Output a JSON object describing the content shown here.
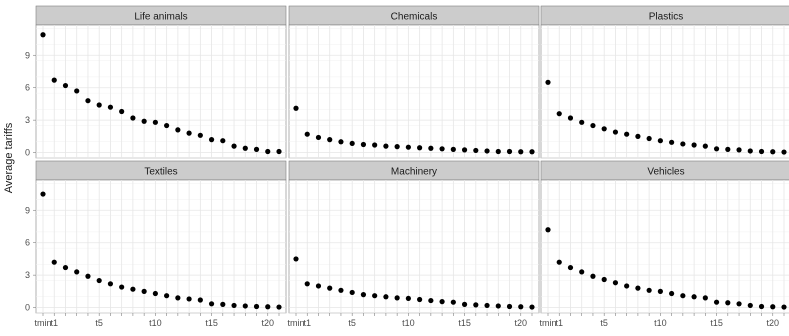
{
  "chart_data": {
    "type": "scatter",
    "ylabel": "Average tariffs",
    "xlabel": "",
    "ylim": [
      -0.5,
      11.8
    ],
    "y_ticks": [
      0,
      3,
      6,
      9
    ],
    "x": [
      "tmin",
      "t1",
      "t2",
      "t3",
      "t4",
      "t5",
      "t6",
      "t7",
      "t8",
      "t9",
      "t10",
      "t11",
      "t12",
      "t13",
      "t14",
      "t15",
      "t16",
      "t17",
      "t18",
      "t19",
      "t20",
      "t21"
    ],
    "x_tick_labels": [
      "tmin",
      "t1",
      "t5",
      "t10",
      "t15",
      "t20"
    ],
    "grid": true,
    "marker_color": "#000000",
    "strip_color": "#cccccc",
    "grid_color": "#e6e6e6",
    "panels": [
      {
        "name": "Life animals",
        "values": [
          10.9,
          6.7,
          6.2,
          5.7,
          4.8,
          4.4,
          4.2,
          3.8,
          3.2,
          2.9,
          2.8,
          2.5,
          2.1,
          1.8,
          1.6,
          1.2,
          1.1,
          0.6,
          0.4,
          0.3,
          0.1,
          0.1
        ]
      },
      {
        "name": "Chemicals",
        "values": [
          4.1,
          1.7,
          1.4,
          1.2,
          1.0,
          0.85,
          0.75,
          0.7,
          0.6,
          0.55,
          0.5,
          0.45,
          0.4,
          0.35,
          0.3,
          0.25,
          0.2,
          0.15,
          0.1,
          0.1,
          0.08,
          0.08
        ]
      },
      {
        "name": "Plastics",
        "values": [
          6.5,
          3.6,
          3.2,
          2.8,
          2.5,
          2.2,
          1.9,
          1.7,
          1.5,
          1.3,
          1.1,
          0.95,
          0.8,
          0.7,
          0.6,
          0.35,
          0.3,
          0.25,
          0.15,
          0.1,
          0.08,
          0.05
        ]
      },
      {
        "name": "Textiles",
        "values": [
          10.5,
          4.2,
          3.7,
          3.3,
          2.9,
          2.5,
          2.2,
          1.9,
          1.7,
          1.5,
          1.3,
          1.1,
          0.9,
          0.8,
          0.7,
          0.35,
          0.3,
          0.2,
          0.15,
          0.1,
          0.08,
          0.05
        ]
      },
      {
        "name": "Machinery",
        "values": [
          4.5,
          2.2,
          2.0,
          1.8,
          1.6,
          1.4,
          1.2,
          1.1,
          1.0,
          0.9,
          0.85,
          0.75,
          0.65,
          0.55,
          0.5,
          0.3,
          0.25,
          0.2,
          0.15,
          0.1,
          0.08,
          0.05
        ]
      },
      {
        "name": "Vehicles",
        "values": [
          7.2,
          4.2,
          3.7,
          3.3,
          2.9,
          2.6,
          2.3,
          2.0,
          1.8,
          1.6,
          1.5,
          1.3,
          1.1,
          1.0,
          0.9,
          0.5,
          0.45,
          0.35,
          0.2,
          0.1,
          0.08,
          0.05
        ]
      }
    ]
  }
}
